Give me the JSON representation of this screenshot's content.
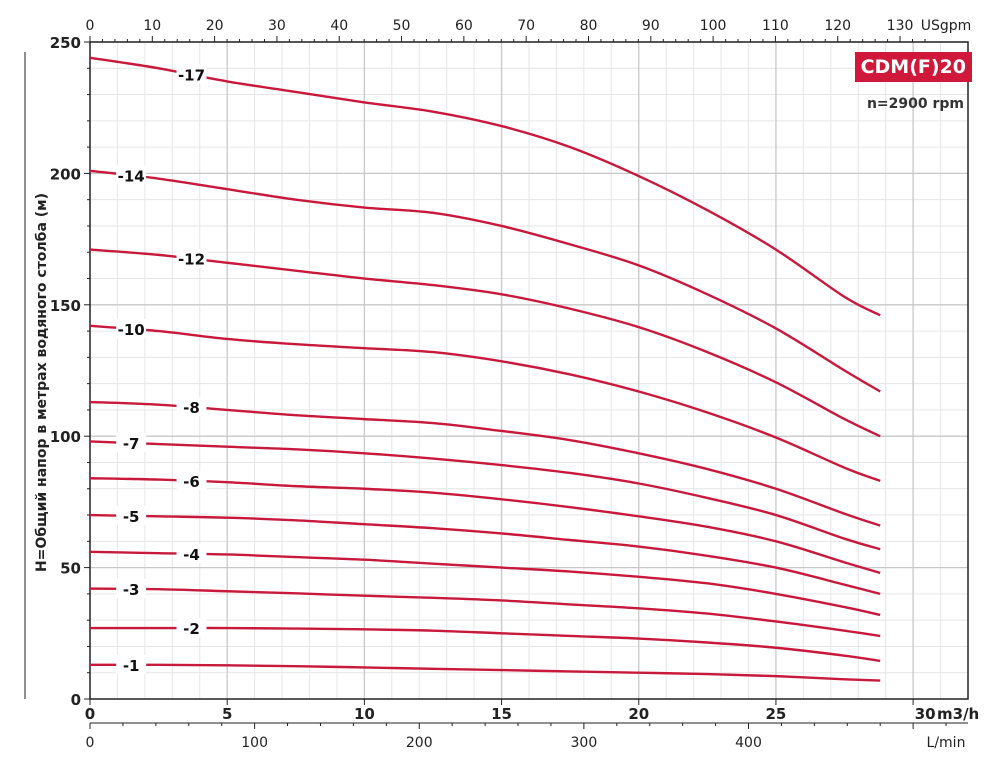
{
  "chart_data": {
    "type": "line",
    "title": "CDM(F)20",
    "subtitle": "n=2900 rpm",
    "ylabel": "H=Общий напор в метрах водяного столба (м)",
    "xlabel": "m3/h",
    "x_bottom2_label": "L/min",
    "x_top_label": "USgpm",
    "xlim": [
      0,
      32
    ],
    "ylim": [
      0,
      250
    ],
    "grid": true,
    "x_ticks": [
      0,
      5,
      10,
      15,
      20,
      25,
      30
    ],
    "y_ticks": [
      0,
      50,
      100,
      150,
      200,
      250
    ],
    "top_ticks": [
      0,
      10,
      20,
      30,
      40,
      50,
      60,
      70,
      80,
      90,
      100,
      110,
      120,
      130
    ],
    "lmin_ticks": [
      0,
      100,
      200,
      300,
      400
    ],
    "x": [
      0,
      2.5,
      5,
      7.5,
      10,
      12.5,
      15,
      17.5,
      20,
      22.5,
      25,
      27.5,
      28.8
    ],
    "series": [
      {
        "name": "-1",
        "values": [
          13,
          13,
          12.8,
          12.5,
          12,
          11.5,
          11,
          10.5,
          10,
          9.5,
          8.7,
          7.5,
          7
        ]
      },
      {
        "name": "-2",
        "values": [
          27,
          27,
          27,
          26.8,
          26.5,
          26,
          25,
          24,
          23,
          21.5,
          19.5,
          16.5,
          14.5
        ]
      },
      {
        "name": "-3",
        "values": [
          42,
          41.8,
          41,
          40.2,
          39.3,
          38.5,
          37.5,
          36,
          34.5,
          32.5,
          29.5,
          26,
          24
        ]
      },
      {
        "name": "-4",
        "values": [
          56,
          55.5,
          55,
          54,
          53,
          51.5,
          50,
          48.5,
          46.5,
          44,
          40,
          35,
          32
        ]
      },
      {
        "name": "-5",
        "values": [
          70,
          69.5,
          69,
          68,
          66.5,
          65,
          63,
          60.5,
          58,
          54.5,
          50,
          43.5,
          40
        ]
      },
      {
        "name": "-6",
        "values": [
          84,
          83.5,
          82.5,
          81,
          80,
          78.5,
          76,
          73,
          69.5,
          65.5,
          60,
          52,
          48
        ]
      },
      {
        "name": "-7",
        "values": [
          98,
          97,
          96,
          95,
          93.5,
          91.5,
          89,
          86,
          82,
          76.5,
          70,
          61,
          57
        ]
      },
      {
        "name": "-8",
        "values": [
          113,
          112,
          110,
          108,
          106.5,
          105,
          102,
          98.5,
          93.5,
          87.5,
          80,
          70.5,
          66
        ]
      },
      {
        "name": "-10",
        "values": [
          142,
          140,
          137,
          135,
          133.5,
          132,
          128.5,
          123.5,
          117,
          109,
          99.5,
          88,
          83
        ]
      },
      {
        "name": "-12",
        "values": [
          171,
          169,
          166,
          163,
          160,
          157.5,
          154,
          148.5,
          141.5,
          132,
          120.5,
          106.5,
          100
        ]
      },
      {
        "name": "-14",
        "values": [
          201,
          198,
          194,
          190,
          187,
          185,
          180,
          173,
          165,
          154,
          141,
          125,
          117
        ]
      },
      {
        "name": "-17",
        "values": [
          244,
          240,
          235,
          231,
          227,
          223.5,
          218,
          210,
          199,
          186,
          171,
          153,
          146
        ]
      }
    ],
    "label_positions_x": [
      1.5,
      3.7,
      1.5,
      3.7,
      1.5,
      3.7,
      1.5,
      3.7,
      1.5,
      3.7,
      1.5,
      3.7
    ],
    "line_color": "#c8193c",
    "badge_color": "#d0193a"
  }
}
